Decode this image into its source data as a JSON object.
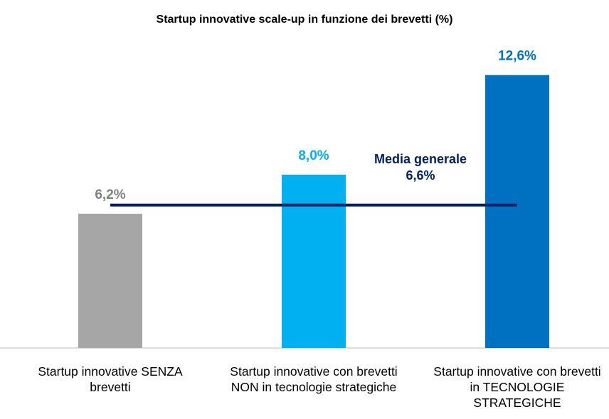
{
  "chart_data": {
    "type": "bar",
    "title": "Startup innovative scale-up in funzione dei brevetti (%)",
    "categories": [
      "Startup innovative SENZA brevetti",
      "Startup innovative con brevetti NON in tecnologie strategiche",
      "Startup innovative con brevetti in TECNOLOGIE STRATEGICHE"
    ],
    "values": [
      6.2,
      8.0,
      12.6
    ],
    "value_labels": [
      "6,2%",
      "8,0%",
      "12,6%"
    ],
    "colors": [
      "#a6a6a6",
      "#00b0f0",
      "#0070c0"
    ],
    "ylim": [
      0,
      14
    ],
    "reference_line": {
      "value": 6.6,
      "label": "Media generale 6,6%",
      "color": "#002060"
    }
  }
}
